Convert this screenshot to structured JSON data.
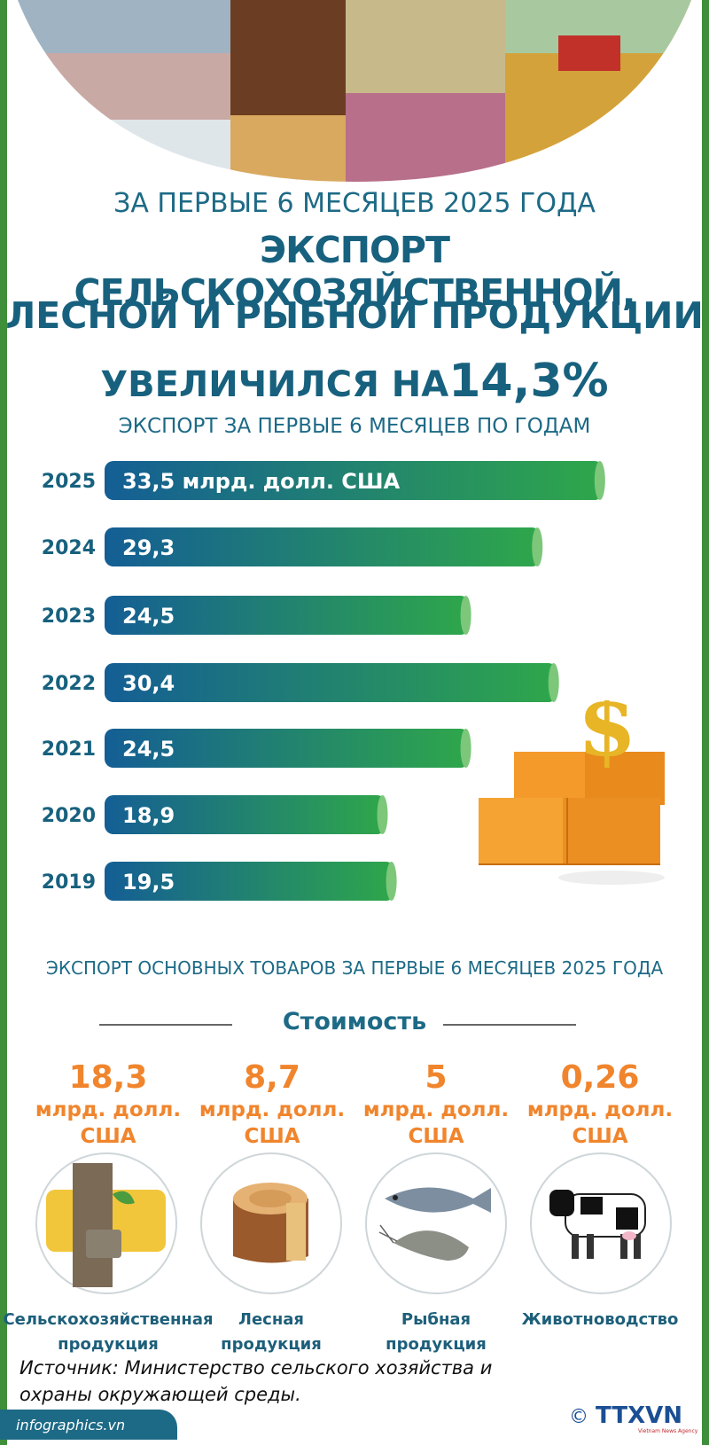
{
  "header": {
    "line1": "ЗА ПЕРВЫЕ 6 МЕСЯЦЕВ 2025 ГОДА",
    "line2": "ЭКСПОРТ СЕЛЬСКОХОЗЯЙСТВЕННОЙ,",
    "line3": "ЛЕСНОЙ И РЫБНОЙ ПРОДУКЦИИ",
    "line4_prefix": "УВЕЛИЧИЛСЯ НА",
    "line4_value": "14,3%"
  },
  "chart_data": {
    "type": "bar",
    "title": "ЭКСПОРТ ЗА ПЕРВЫЕ 6 МЕСЯЦЕВ ПО ГОДАМ",
    "orientation": "horizontal",
    "categories": [
      "2025",
      "2024",
      "2023",
      "2022",
      "2021",
      "2020",
      "2019"
    ],
    "values": [
      33.5,
      29.3,
      24.5,
      30.4,
      24.5,
      18.9,
      19.5
    ],
    "value_labels": [
      "33,5 млрд. долл. США",
      "29,3",
      "24,5",
      "30,4",
      "24,5",
      "18,9",
      "19,5"
    ],
    "xlim": [
      0,
      36
    ],
    "grid": false,
    "legend": "none",
    "colors": {
      "bar_start": "#145e95",
      "bar_end": "#2fa74a",
      "cap": "#7cc77a",
      "year_label": "#17617e"
    }
  },
  "goods": {
    "title": "ЭКСПОРТ ОСНОВНЫХ ТОВАРОВ ЗА ПЕРВЫЕ 6 МЕСЯЦЕВ 2025 ГОДА",
    "subtitle": "Стоимость",
    "items": [
      {
        "value": "18,3",
        "unit": "млрд. долл. США",
        "label": "Сельскохозяйственная продукция",
        "icon": "rubber-tap-icon"
      },
      {
        "value": "8,7",
        "unit": "млрд. долл. США",
        "label": "Лесная продукция",
        "icon": "wood-stump-icon"
      },
      {
        "value": "5",
        "unit": "млрд. долл. США",
        "label": "Рыбная продукция",
        "icon": "fish-shrimp-icon"
      },
      {
        "value": "0,26",
        "unit": "млрд. долл. США",
        "label": "Животноводство",
        "icon": "cow-icon"
      }
    ]
  },
  "source": "Источник: Министерство сельского хозяйства и охраны окружающей среды.",
  "footer": {
    "site": "infographics.vn",
    "copyright": "©",
    "brand": "TTXVN",
    "brand_sub": "Vietnam News Agency"
  }
}
